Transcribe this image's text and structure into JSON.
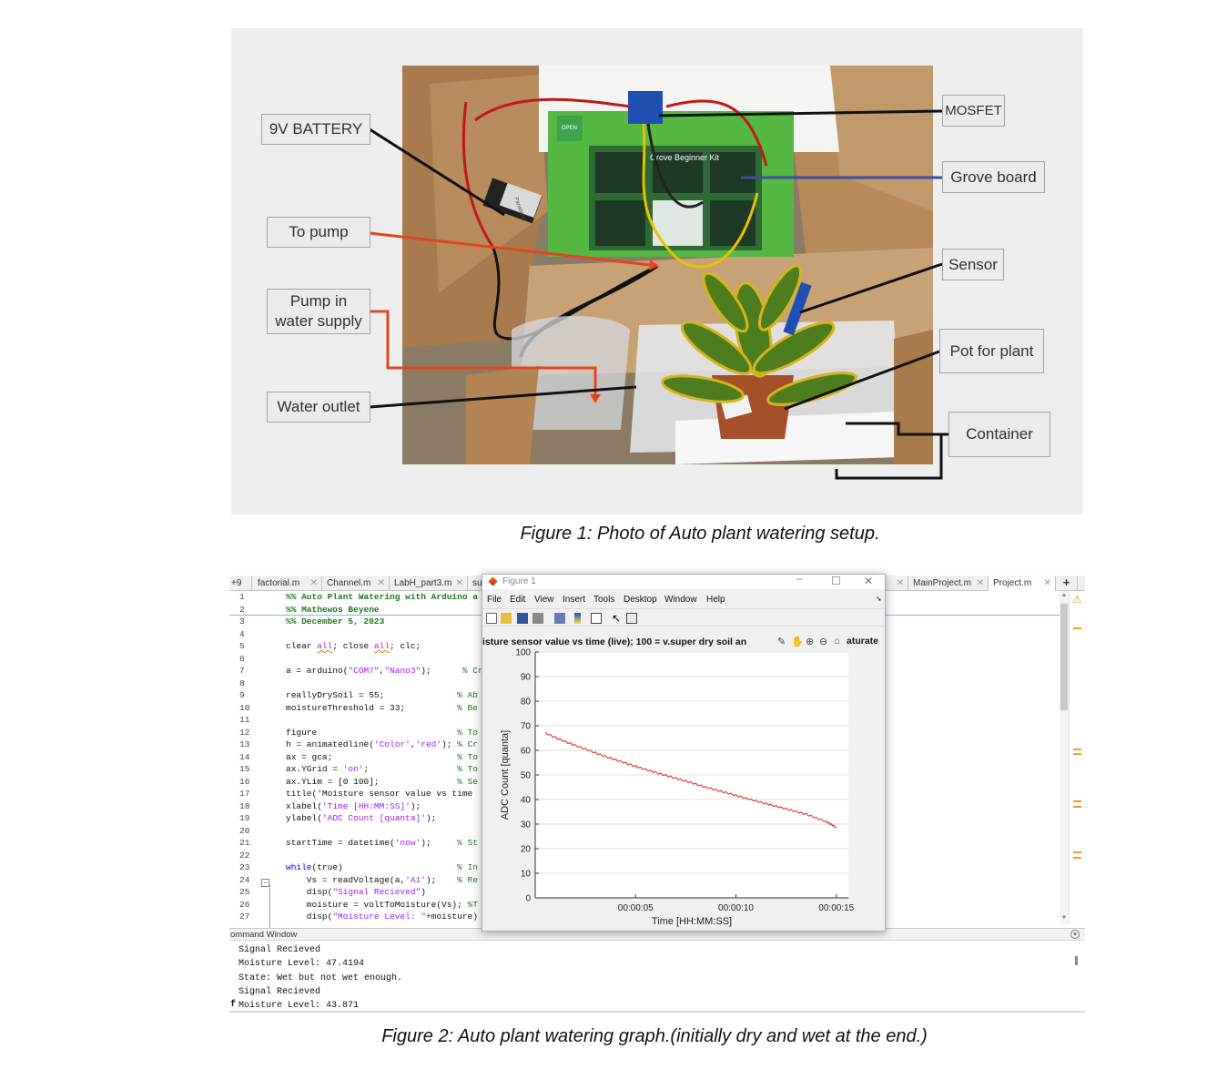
{
  "figure1": {
    "caption": "Figure 1: Photo of Auto plant watering setup.",
    "callouts": {
      "battery": "9V BATTERY",
      "to_pump": "To pump",
      "pump_in_water": "Pump in water supply",
      "water_outlet": "Water outlet",
      "mosfet": "MOSFET",
      "grove_board": "Grove board",
      "sensor": "Sensor",
      "pot_for_plant": "Pot for plant",
      "container": "Container"
    },
    "photo_text": {
      "kit": "Grove Beginner Kit",
      "open": "OPEN",
      "battery_brand": "Panasonic"
    }
  },
  "figure2": {
    "caption": "Figure 2: Auto plant watering graph.(initially dry and wet at the end.)",
    "tabs": {
      "overflow": "+9",
      "t1": "factorial.m",
      "t2": "Channel.m",
      "t3": "LabH_part3.m",
      "t4": "su",
      "t5": "MainProject.m",
      "t6": "Project.m",
      "add": "+"
    },
    "code_lines": [
      "%% Auto Plant Watering with Arduino a",
      "%% Mathewos Beyene",
      "%% December 5, 2023",
      "",
      "clear all; close all; clc;",
      "",
      "a = arduino(\"COM7\",\"Nano3\");      % Cr",
      "",
      "reallyDrySoil = 55;              % Ab",
      "moistureThreshold = 33;          % Be",
      "",
      "figure                           % To",
      "h = animatedline('Color','red'); % Cr",
      "ax = gca;                        % To",
      "ax.YGrid = 'on';                 % To",
      "ax.YLim = [0 100];               % Se",
      "title('Moisture sensor value vs time",
      "xlabel('Time [HH:MM:SS]');",
      "ylabel('ADC Count [quanta]');",
      "",
      "startTime = datetime('now');     % St",
      "",
      "while(true)                      % In",
      "    Vs = readVoltage(a,'A1');    % Re",
      "    disp(\"Signal Recieved\")",
      "    moisture = voltToMoisture(Vs); %T",
      "    disp(\"Moisture Level: \"+moisture)"
    ],
    "command_window": {
      "header": "ommand Window",
      "lines": [
        "Signal Recieved",
        "Moisture Level: 47.4194",
        "State: Wet but not wet enough.",
        "Signal Recieved",
        "Moisture Level: 43.871"
      ],
      "prompt_fragment": "f"
    },
    "figure_window": {
      "title": "Figure 1",
      "menu": [
        "File",
        "Edit",
        "View",
        "Insert",
        "Tools",
        "Desktop",
        "Window",
        "Help"
      ],
      "chart_title_left": "isture sensor value vs time (live); 100 = v.super dry soil an",
      "chart_title_right": "aturate"
    }
  },
  "chart_data": {
    "type": "line",
    "title": "isture sensor value vs time (live); 100 = v.super dry soil an … aturate",
    "xlabel": "Time [HH:MM:SS]",
    "ylabel": "ADC Count [quanta]",
    "ylim": [
      0,
      100
    ],
    "xlim_seconds": [
      0,
      15
    ],
    "yticks": [
      0,
      10,
      20,
      30,
      40,
      50,
      60,
      70,
      80,
      90,
      100
    ],
    "xticks": [
      "00:00:05",
      "00:00:10",
      "00:00:15"
    ],
    "xtick_values_seconds": [
      5,
      10,
      15
    ],
    "grid": "y",
    "series": [
      {
        "color": "#e02020",
        "x_seconds": [
          0.5,
          1.5,
          2.5,
          3.5,
          4.5,
          5.5,
          6.5,
          7.5,
          8.5,
          9.5,
          10.5,
          11.5,
          12.5,
          13.5,
          14.5,
          15.0
        ],
        "values": [
          67,
          63.5,
          60.5,
          57.5,
          54.8,
          52.2,
          49.8,
          47.5,
          45.0,
          42.8,
          40.5,
          38.3,
          36.2,
          34.0,
          31.0,
          28.7
        ]
      }
    ]
  }
}
